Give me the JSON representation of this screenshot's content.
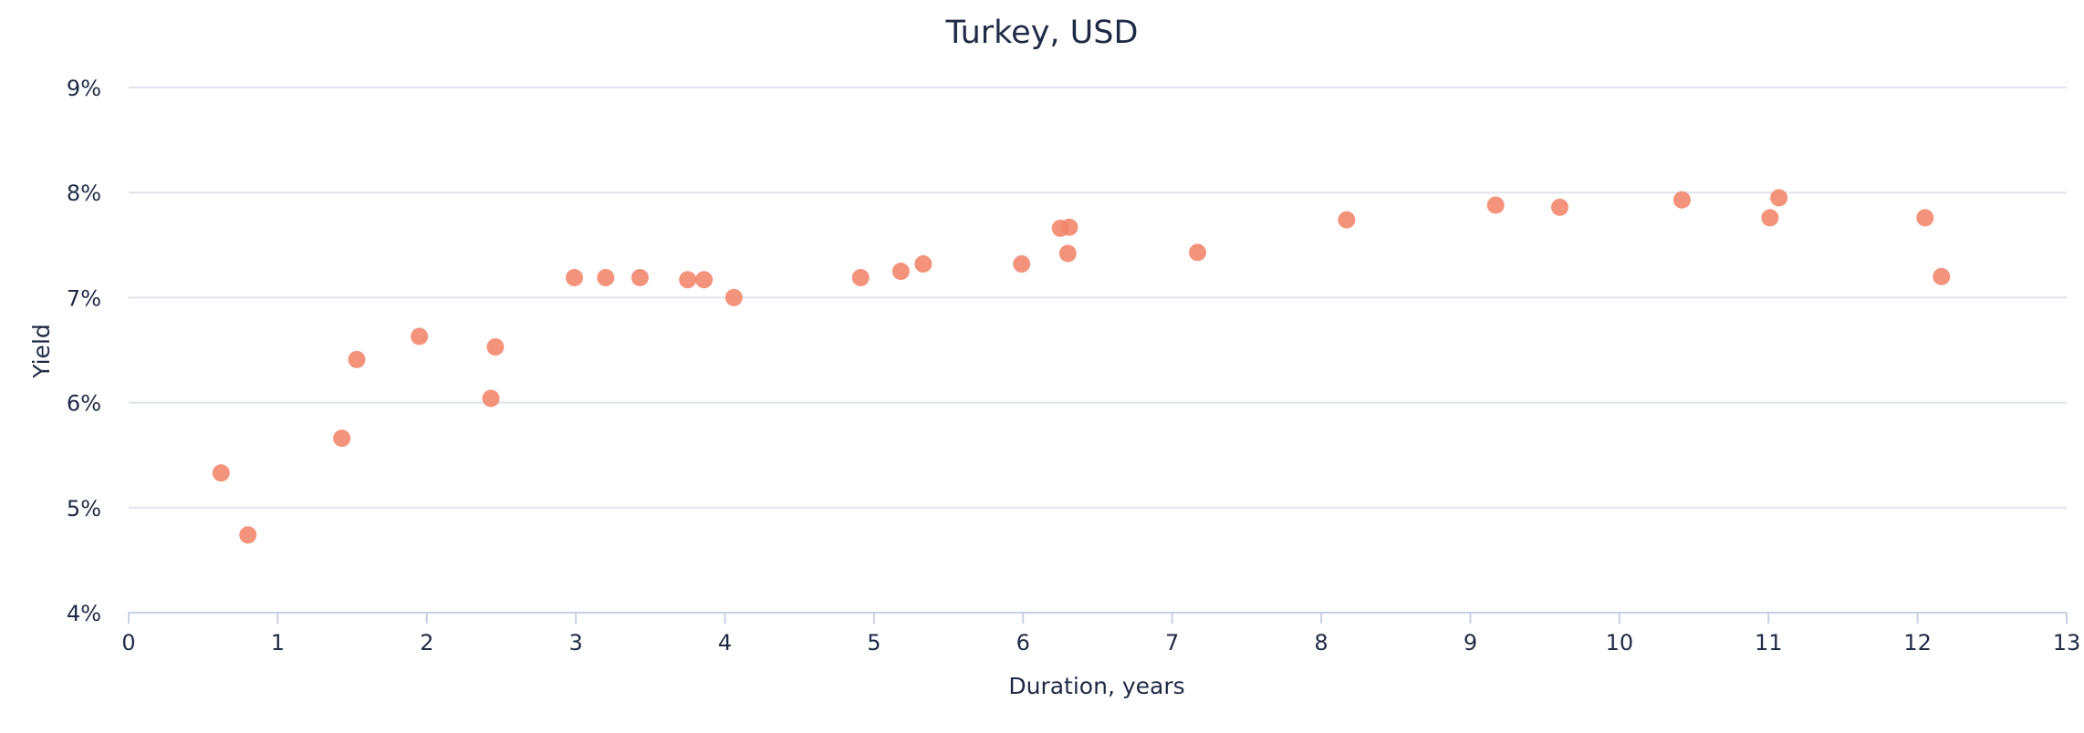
{
  "chart_data": {
    "type": "scatter",
    "title": "Turkey, USD",
    "xlabel": "Duration, years",
    "ylabel": "Yield",
    "xlim": [
      0,
      13
    ],
    "ylim": [
      4,
      9
    ],
    "x_ticks": [
      0,
      1,
      2,
      3,
      4,
      5,
      6,
      7,
      8,
      9,
      10,
      11,
      12,
      13
    ],
    "y_ticks": [
      4,
      5,
      6,
      7,
      8,
      9
    ],
    "y_tick_suffix": "%",
    "grid": "horizontal",
    "legend": "none",
    "point_color": "#f3876d",
    "series": [
      {
        "x": [
          0.62,
          0.8,
          1.43,
          1.53,
          1.95,
          2.43,
          2.46,
          2.99,
          3.2,
          3.43,
          3.75,
          3.86,
          4.06,
          4.91,
          5.18,
          5.33,
          5.99,
          6.25,
          6.31,
          6.3,
          7.17,
          8.17,
          9.17,
          9.6,
          10.42,
          11.01,
          11.07,
          12.05,
          12.16
        ],
        "y": [
          5.33,
          4.74,
          5.66,
          6.41,
          6.63,
          6.04,
          6.53,
          7.19,
          7.19,
          7.19,
          7.17,
          7.17,
          7.0,
          7.19,
          7.25,
          7.32,
          7.32,
          7.66,
          7.67,
          7.42,
          7.43,
          7.74,
          7.88,
          7.86,
          7.93,
          7.76,
          7.95,
          7.76,
          7.2
        ]
      }
    ]
  }
}
